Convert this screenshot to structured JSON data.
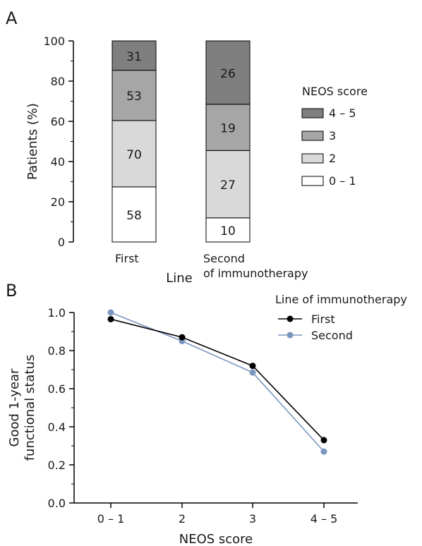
{
  "panels": {
    "a_label": "A",
    "b_label": "B"
  },
  "chart_data": [
    {
      "type": "bar",
      "stacked": true,
      "categories": [
        "First",
        "Second"
      ],
      "category_labels": [
        [
          "First"
        ],
        [
          "Second",
          "of immunotherapy"
        ]
      ],
      "xlabel": "Line",
      "ylabel": "Patients (%)",
      "ylim": [
        0,
        100
      ],
      "yticks": [
        0,
        20,
        40,
        60,
        80,
        100
      ],
      "legend_title": "NEOS score",
      "legend_position": "right",
      "series": [
        {
          "name": "0 – 1",
          "color": "#ffffff",
          "counts": [
            58,
            10
          ],
          "values": [
            27.4,
            12.0
          ]
        },
        {
          "name": "2",
          "color": "#d9d9d9",
          "counts": [
            70,
            27
          ],
          "values": [
            33.0,
            33.5
          ]
        },
        {
          "name": "3",
          "color": "#a6a6a6",
          "counts": [
            53,
            19
          ],
          "values": [
            25.0,
            23.0
          ]
        },
        {
          "name": "4 – 5",
          "color": "#7f7f7f",
          "counts": [
            31,
            26
          ],
          "values": [
            14.6,
            31.5
          ]
        }
      ],
      "grid": false
    },
    {
      "type": "line",
      "categories": [
        "0 – 1",
        "2",
        "3",
        "4 – 5"
      ],
      "xlabel": "NEOS score",
      "ylabel_lines": [
        "Good 1-year",
        "functional status"
      ],
      "ylim": [
        0,
        1.0
      ],
      "yticks": [
        "0.0",
        "0.2",
        "0.4",
        "0.6",
        "0.8",
        "1.0"
      ],
      "legend_title": "Line of immunotherapy",
      "legend_position": "top-right",
      "series": [
        {
          "name": "First",
          "color": "#000000",
          "values": [
            0.965,
            0.87,
            0.72,
            0.33
          ]
        },
        {
          "name": "Second",
          "color": "#7b97c0",
          "values": [
            1.0,
            0.85,
            0.685,
            0.27
          ]
        }
      ],
      "grid": false
    }
  ]
}
